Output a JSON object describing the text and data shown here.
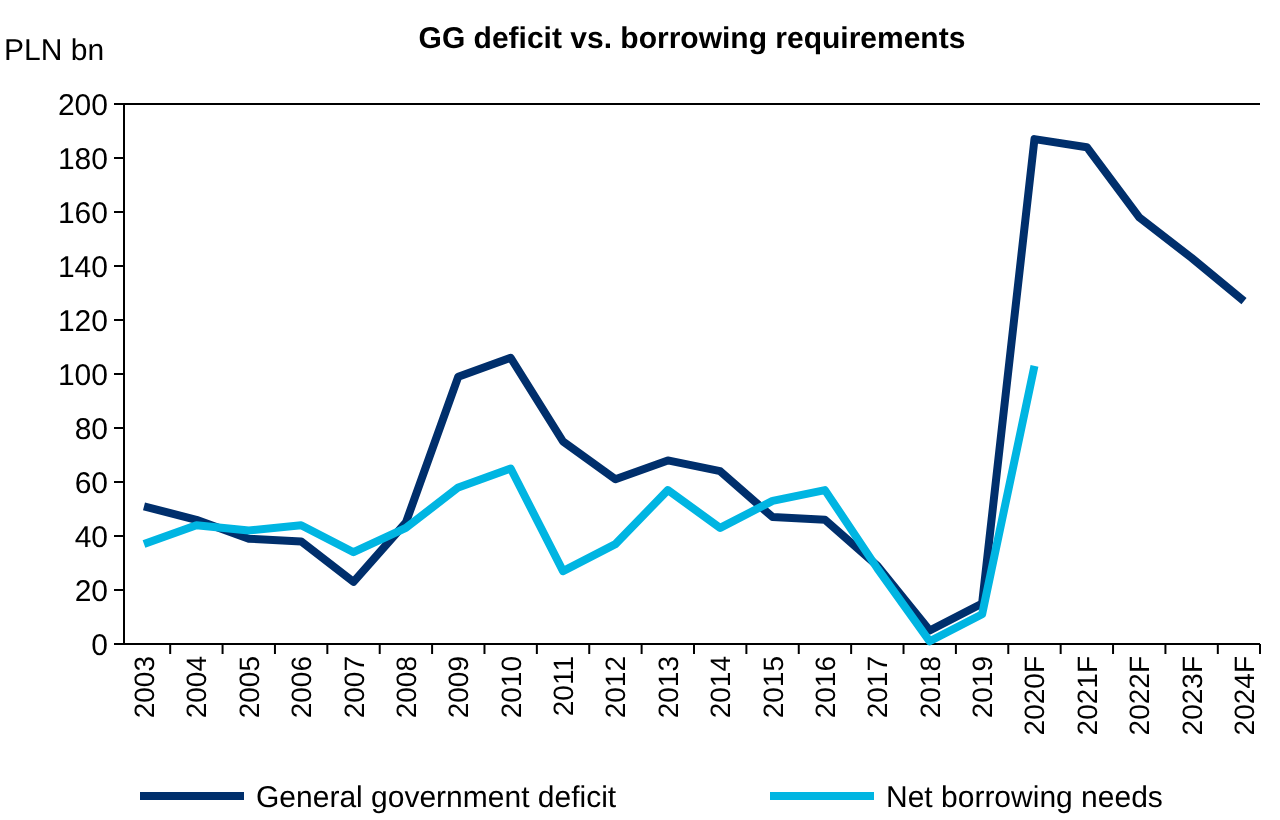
{
  "chart_data": {
    "type": "line",
    "title": "GG deficit vs. borrowing requirements",
    "ylabel": "PLN bn",
    "categories": [
      "2003",
      "2004",
      "2005",
      "2006",
      "2007",
      "2008",
      "2009",
      "2010",
      "2011",
      "2012",
      "2013",
      "2014",
      "2015",
      "2016",
      "2017",
      "2018",
      "2019",
      "2020F",
      "2021F",
      "2022F",
      "2023F",
      "2024F"
    ],
    "series": [
      {
        "name": "General government deficit",
        "color": "#002f6c",
        "values": [
          51,
          46,
          39,
          38,
          23,
          45,
          99,
          106,
          75,
          61,
          68,
          64,
          47,
          46,
          29,
          5,
          15,
          187,
          184,
          158,
          143,
          127
        ]
      },
      {
        "name": "Net borrowing needs",
        "color": "#00b5e2",
        "values": [
          37,
          44,
          42,
          44,
          34,
          43,
          58,
          65,
          27,
          37,
          57,
          43,
          53,
          57,
          28,
          1,
          11,
          103,
          null,
          null,
          null,
          null
        ]
      }
    ],
    "ylim": [
      0,
      200
    ],
    "yticks": [
      0,
      20,
      40,
      60,
      80,
      100,
      120,
      140,
      160,
      180,
      200
    ],
    "grid": false,
    "legend": "bottom",
    "marker": "none",
    "line_style": "solid"
  }
}
